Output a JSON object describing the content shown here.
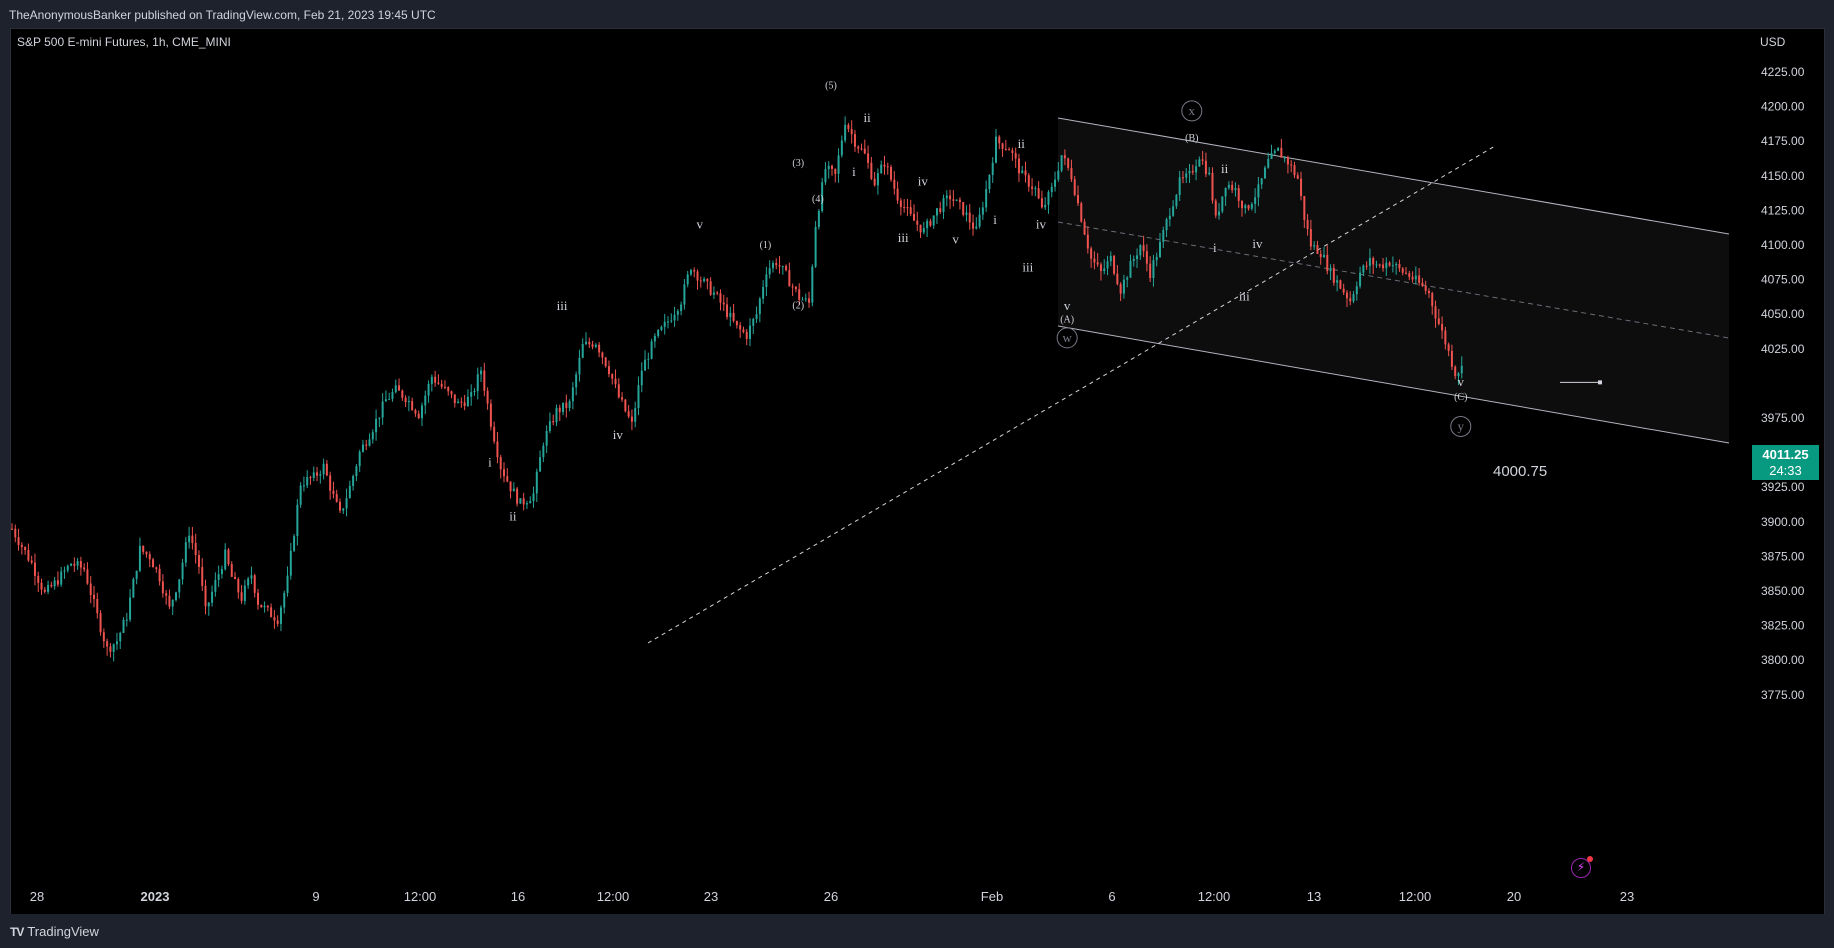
{
  "header": {
    "publisher": "TheAnonymousBanker published on TradingView.com, Feb 21, 2023 19:45 UTC"
  },
  "symbol": {
    "name": "S&P 500 E-mini Futures, 1h, CME_MINI"
  },
  "currency": "USD",
  "brand": "TradingView",
  "last_price": {
    "value": "4011.25",
    "countdown": "24:33"
  },
  "low_marker": "4000.75",
  "colors": {
    "up": "#26a69a",
    "down": "#ef5350",
    "background": "#000000",
    "channel_fill": "#0d0d0d",
    "text": "#d1d4dc",
    "price_tag": "#089981"
  },
  "chart_data": {
    "type": "candlestick",
    "xlabel": "",
    "ylabel": "",
    "ylim": [
      3762,
      4236
    ],
    "y_ticks": [
      4225,
      4200,
      4175,
      4150,
      4125,
      4100,
      4075,
      4050,
      4025,
      3975,
      3950,
      3925,
      3900,
      3875,
      3850,
      3825,
      3800,
      3775
    ],
    "x_tick_labels": [
      "28",
      "2023",
      "9",
      "12:00",
      "16",
      "12:00",
      "23",
      "26",
      "Feb",
      "6",
      "12:00",
      "13",
      "12:00",
      "20",
      "23"
    ],
    "close_path": [
      [
        0,
        3895
      ],
      [
        6,
        3870
      ],
      [
        10,
        3848
      ],
      [
        14,
        3858
      ],
      [
        18,
        3870
      ],
      [
        22,
        3866
      ],
      [
        26,
        3832
      ],
      [
        29,
        3808
      ],
      [
        32,
        3814
      ],
      [
        35,
        3832
      ],
      [
        39,
        3880
      ],
      [
        42,
        3875
      ],
      [
        45,
        3860
      ],
      [
        48,
        3837
      ],
      [
        51,
        3860
      ],
      [
        54,
        3893
      ],
      [
        57,
        3868
      ],
      [
        59,
        3835
      ],
      [
        62,
        3856
      ],
      [
        65,
        3876
      ],
      [
        67,
        3860
      ],
      [
        70,
        3845
      ],
      [
        73,
        3862
      ],
      [
        75,
        3842
      ],
      [
        78,
        3835
      ],
      [
        81,
        3830
      ],
      [
        84,
        3858
      ],
      [
        88,
        3928
      ],
      [
        92,
        3932
      ],
      [
        95,
        3940
      ],
      [
        98,
        3918
      ],
      [
        100,
        3905
      ],
      [
        103,
        3925
      ],
      [
        106,
        3950
      ],
      [
        110,
        3968
      ],
      [
        114,
        3988
      ],
      [
        117,
        3995
      ],
      [
        120,
        3990
      ],
      [
        124,
        3978
      ],
      [
        128,
        4005
      ],
      [
        132,
        3995
      ],
      [
        136,
        3985
      ],
      [
        140,
        3990
      ],
      [
        143,
        4010
      ],
      [
        146,
        3972
      ],
      [
        149,
        3940
      ],
      [
        152,
        3925
      ],
      [
        155,
        3913
      ],
      [
        159,
        3920
      ],
      [
        162,
        3958
      ],
      [
        166,
        3980
      ],
      [
        170,
        3985
      ],
      [
        174,
        4027
      ],
      [
        178,
        4030
      ],
      [
        182,
        4010
      ],
      [
        185,
        3990
      ],
      [
        189,
        3970
      ],
      [
        192,
        4010
      ],
      [
        196,
        4032
      ],
      [
        200,
        4045
      ],
      [
        204,
        4060
      ],
      [
        207,
        4085
      ],
      [
        210,
        4075
      ],
      [
        214,
        4065
      ],
      [
        217,
        4055
      ],
      [
        221,
        4040
      ],
      [
        224,
        4035
      ],
      [
        227,
        4050
      ],
      [
        230,
        4082
      ],
      [
        233,
        4088
      ],
      [
        236,
        4078
      ],
      [
        240,
        4062
      ],
      [
        243,
        4058
      ],
      [
        245,
        4115
      ],
      [
        248,
        4155
      ],
      [
        251,
        4150
      ],
      [
        254,
        4190
      ],
      [
        257,
        4175
      ],
      [
        260,
        4165
      ],
      [
        263,
        4145
      ],
      [
        266,
        4160
      ],
      [
        270,
        4135
      ],
      [
        274,
        4120
      ],
      [
        278,
        4110
      ],
      [
        282,
        4125
      ],
      [
        286,
        4135
      ],
      [
        290,
        4125
      ],
      [
        294,
        4110
      ],
      [
        297,
        4140
      ],
      [
        300,
        4175
      ],
      [
        304,
        4170
      ],
      [
        308,
        4150
      ],
      [
        312,
        4140
      ],
      [
        314,
        4125
      ],
      [
        317,
        4140
      ],
      [
        320,
        4165
      ],
      [
        323,
        4150
      ],
      [
        326,
        4120
      ],
      [
        329,
        4090
      ],
      [
        332,
        4080
      ],
      [
        335,
        4090
      ],
      [
        338,
        4068
      ],
      [
        341,
        4085
      ],
      [
        344,
        4100
      ],
      [
        347,
        4080
      ],
      [
        350,
        4100
      ],
      [
        353,
        4125
      ],
      [
        356,
        4145
      ],
      [
        359,
        4150
      ],
      [
        362,
        4165
      ],
      [
        365,
        4150
      ],
      [
        367,
        4118
      ],
      [
        370,
        4145
      ],
      [
        373,
        4140
      ],
      [
        376,
        4125
      ],
      [
        380,
        4140
      ],
      [
        383,
        4160
      ],
      [
        386,
        4168
      ],
      [
        389,
        4160
      ],
      [
        392,
        4148
      ],
      [
        394,
        4120
      ],
      [
        396,
        4100
      ],
      [
        399,
        4095
      ],
      [
        402,
        4080
      ],
      [
        405,
        4070
      ],
      [
        408,
        4060
      ],
      [
        411,
        4080
      ],
      [
        414,
        4088
      ],
      [
        417,
        4085
      ],
      [
        420,
        4088
      ],
      [
        423,
        4082
      ],
      [
        426,
        4078
      ],
      [
        429,
        4072
      ],
      [
        432,
        4065
      ],
      [
        434,
        4050
      ],
      [
        437,
        4030
      ],
      [
        440,
        4008
      ],
      [
        442,
        4011
      ]
    ],
    "annotations": [
      {
        "text": "(5)",
        "x": 250,
        "y": 4213
      },
      {
        "text": "ii",
        "x": 261,
        "y": 4189
      },
      {
        "text": "i",
        "x": 257,
        "y": 4150
      },
      {
        "text": "(3)",
        "x": 240,
        "y": 4157
      },
      {
        "text": "(4)",
        "x": 246,
        "y": 4131
      },
      {
        "text": "(1)",
        "x": 230,
        "y": 4098
      },
      {
        "text": "(2)",
        "x": 240,
        "y": 4054
      },
      {
        "text": "iii",
        "x": 168,
        "y": 4053
      },
      {
        "text": "v",
        "x": 210,
        "y": 4112
      },
      {
        "text": "iv",
        "x": 185,
        "y": 3960
      },
      {
        "text": "i",
        "x": 146,
        "y": 3940
      },
      {
        "text": "ii",
        "x": 153,
        "y": 3901
      },
      {
        "text": "iv",
        "x": 278,
        "y": 4143
      },
      {
        "text": "iii",
        "x": 272,
        "y": 4102
      },
      {
        "text": "v",
        "x": 288,
        "y": 4101
      },
      {
        "text": "ii",
        "x": 308,
        "y": 4170
      },
      {
        "text": "i",
        "x": 300,
        "y": 4115
      },
      {
        "text": "iv",
        "x": 314,
        "y": 4112
      },
      {
        "text": "iii",
        "x": 310,
        "y": 4081
      },
      {
        "text": "v",
        "x": 322,
        "y": 4053
      },
      {
        "text": "(A)",
        "x": 322,
        "y": 4044
      },
      {
        "text": "w",
        "x": 322,
        "y": 4030
      },
      {
        "text": "x",
        "x": 360,
        "y": 4194
      },
      {
        "text": "(B)",
        "x": 360,
        "y": 4175
      },
      {
        "text": "ii",
        "x": 370,
        "y": 4152
      },
      {
        "text": "i",
        "x": 367,
        "y": 4095
      },
      {
        "text": "iv",
        "x": 380,
        "y": 4098
      },
      {
        "text": "iii",
        "x": 376,
        "y": 4060
      },
      {
        "text": "v",
        "x": 442,
        "y": 3998
      },
      {
        "text": "(C)",
        "x": 442,
        "y": 3988
      },
      {
        "text": "y",
        "x": 442,
        "y": 3966
      }
    ]
  }
}
